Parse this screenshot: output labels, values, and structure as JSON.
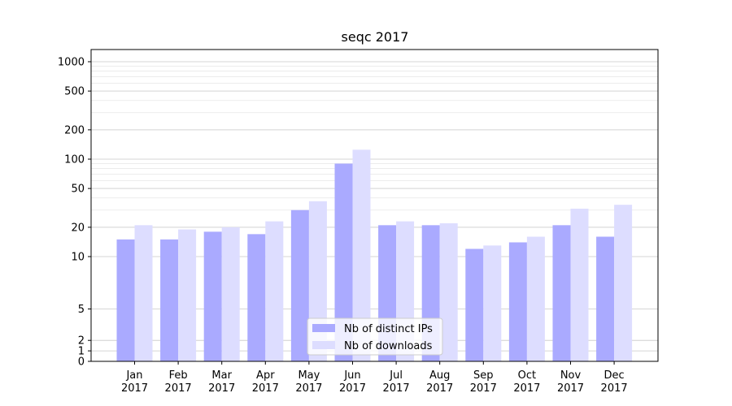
{
  "chart_data": {
    "type": "bar",
    "title": "seqc 2017",
    "xlabel": "",
    "ylabel": "",
    "categories": [
      [
        "Jan",
        "2017"
      ],
      [
        "Feb",
        "2017"
      ],
      [
        "Mar",
        "2017"
      ],
      [
        "Apr",
        "2017"
      ],
      [
        "May",
        "2017"
      ],
      [
        "Jun",
        "2017"
      ],
      [
        "Jul",
        "2017"
      ],
      [
        "Aug",
        "2017"
      ],
      [
        "Sep",
        "2017"
      ],
      [
        "Oct",
        "2017"
      ],
      [
        "Nov",
        "2017"
      ],
      [
        "Dec",
        "2017"
      ]
    ],
    "series": [
      {
        "name": "Nb of distinct IPs",
        "color": "#aaaaff",
        "values": [
          15,
          15,
          18,
          17,
          30,
          90,
          21,
          21,
          12,
          14,
          21,
          16
        ]
      },
      {
        "name": "Nb of downloads",
        "color": "#ddddff",
        "values": [
          21,
          19,
          20,
          23,
          37,
          125,
          23,
          22,
          13,
          16,
          31,
          34
        ]
      }
    ],
    "y_scale": "symlog (log above 10, linear from 0 to 10)",
    "ylim": [
      0,
      1300
    ],
    "yticks": [
      0,
      1,
      2,
      5,
      10,
      20,
      50,
      100,
      200,
      500,
      1000
    ],
    "ytick_labels": [
      "0",
      "1",
      "2",
      "5",
      "10",
      "20",
      "50",
      "100",
      "200",
      "500",
      "1000"
    ],
    "grid": "horizontal",
    "legend_position": "bottom-center"
  }
}
